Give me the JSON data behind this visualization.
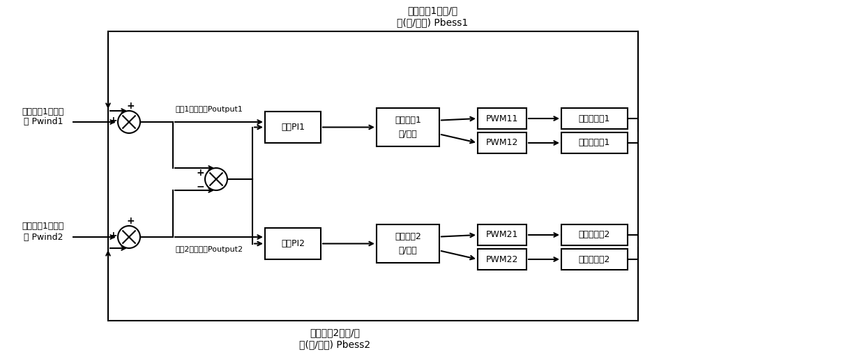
{
  "bg_color": "#ffffff",
  "line_color": "#000000",
  "top_label1": "储能系统1输入/输",
  "top_label2": "出(冲/放电) Pbess1",
  "bottom_label1": "储能系统2输入/输",
  "bottom_label2": "出(冲/放电) Pbess2",
  "wind1_label1": "风电机组1输出功",
  "wind1_label2": "率 Pwind1",
  "wind2_label1": "风电机组1输出功",
  "wind2_label2": "率 Pwind2",
  "region1_label": "区域1输出功率Poutput1",
  "region2_label": "区域2输出功率Poutput2",
  "pi1_label": "智能PI1",
  "pi2_label": "智能PI2",
  "ess1_label1": "储能系统1",
  "ess1_label2": "充/放电",
  "ess2_label1": "储能系统2",
  "ess2_label2": "充/放电",
  "pwm11_label": "PWM11",
  "pwm12_label": "PWM12",
  "pwm21_label": "PWM21",
  "pwm22_label": "PWM22",
  "dc1_label": "降压变换器1",
  "dc2_label": "升压变换器1",
  "dc3_label": "降压变换器2",
  "dc4_label": "升压变换器2"
}
